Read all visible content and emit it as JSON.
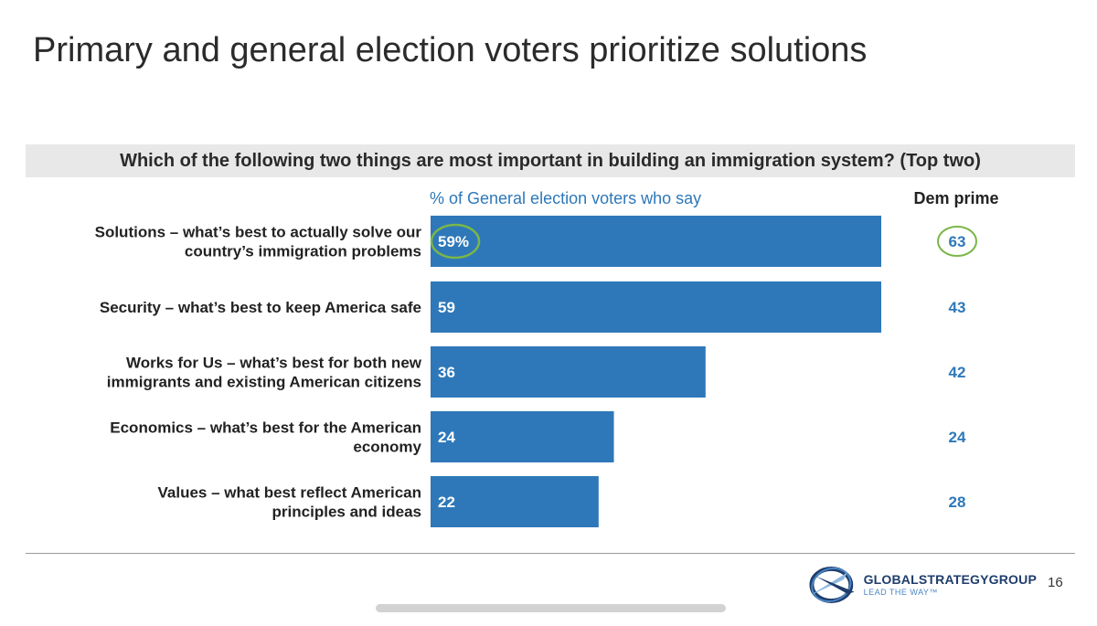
{
  "title": "Primary and general election voters prioritize solutions",
  "question": "Which of the following two things are most important in building an immigration system? (Top two)",
  "page_number": "16",
  "logo": {
    "name": "GLOBALSTRATEGYGROUP",
    "tagline": "LEAD THE WAY™"
  },
  "colors": {
    "bar": "#2e78b9",
    "highlight_circle": "#7ab648",
    "dem_value": "#2e78b9"
  },
  "chart_data": {
    "type": "bar",
    "orientation": "horizontal",
    "series_label": "% of General election voters who say",
    "categories": [
      [
        "Solutions – what’s best to actually solve our",
        "country’s immigration problems"
      ],
      [
        "Security – what’s best to keep America safe"
      ],
      [
        "Works for Us – what’s best for both new",
        "immigrants and existing American citizens"
      ],
      [
        "Economics – what’s best for the American",
        "economy"
      ],
      [
        "Values – what best reflect American",
        "principles and ideas"
      ]
    ],
    "values": [
      59,
      59,
      36,
      24,
      22
    ],
    "value_labels": [
      "59%",
      "59",
      "36",
      "24",
      "22"
    ],
    "dem_prime": {
      "header": "Dem prime",
      "values": [
        63,
        43,
        42,
        24,
        28
      ]
    },
    "highlighted_index": 0,
    "xlim": [
      0,
      59
    ]
  }
}
